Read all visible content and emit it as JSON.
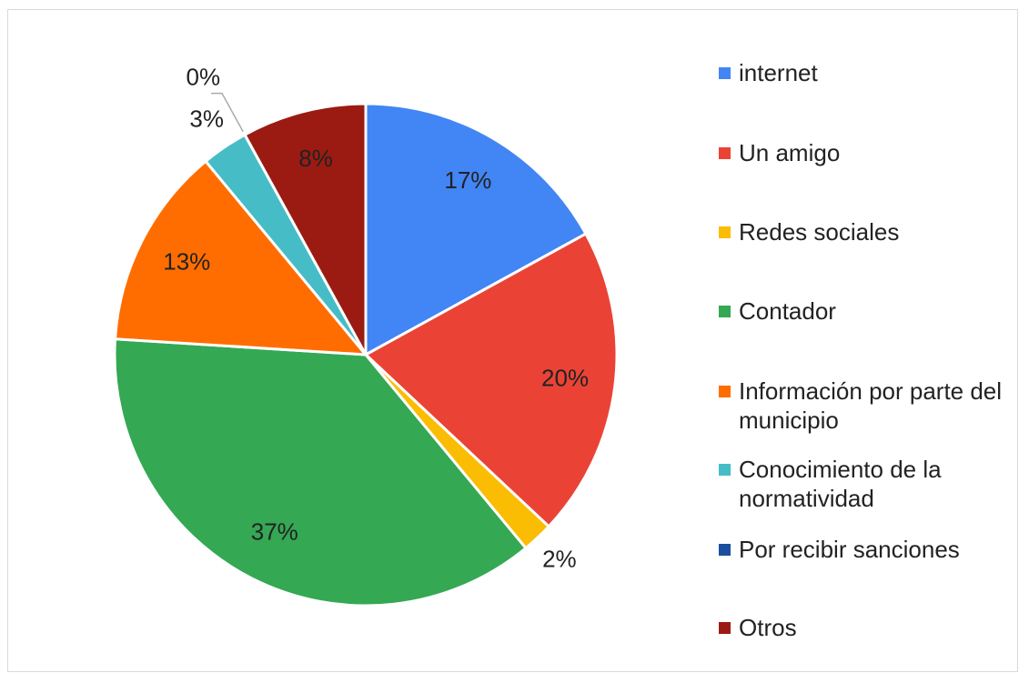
{
  "chart_data": {
    "type": "pie",
    "categories": [
      "internet",
      "Un amigo",
      "Redes sociales",
      "Contador",
      "Información por parte del municipio",
      "Conocimiento de la normatividad",
      "Por recibir sanciones",
      "Otros"
    ],
    "values": [
      17,
      20,
      2,
      37,
      13,
      3,
      0,
      8
    ],
    "value_labels": [
      "17%",
      "20%",
      "2%",
      "37%",
      "13%",
      "3%",
      "0%",
      "8%"
    ],
    "colors": [
      "#4285f4",
      "#ea4335",
      "#fbbc04",
      "#34a853",
      "#ff6d01",
      "#46bdc6",
      "#1a4fa0",
      "#9b1b12"
    ],
    "legend": "right"
  }
}
